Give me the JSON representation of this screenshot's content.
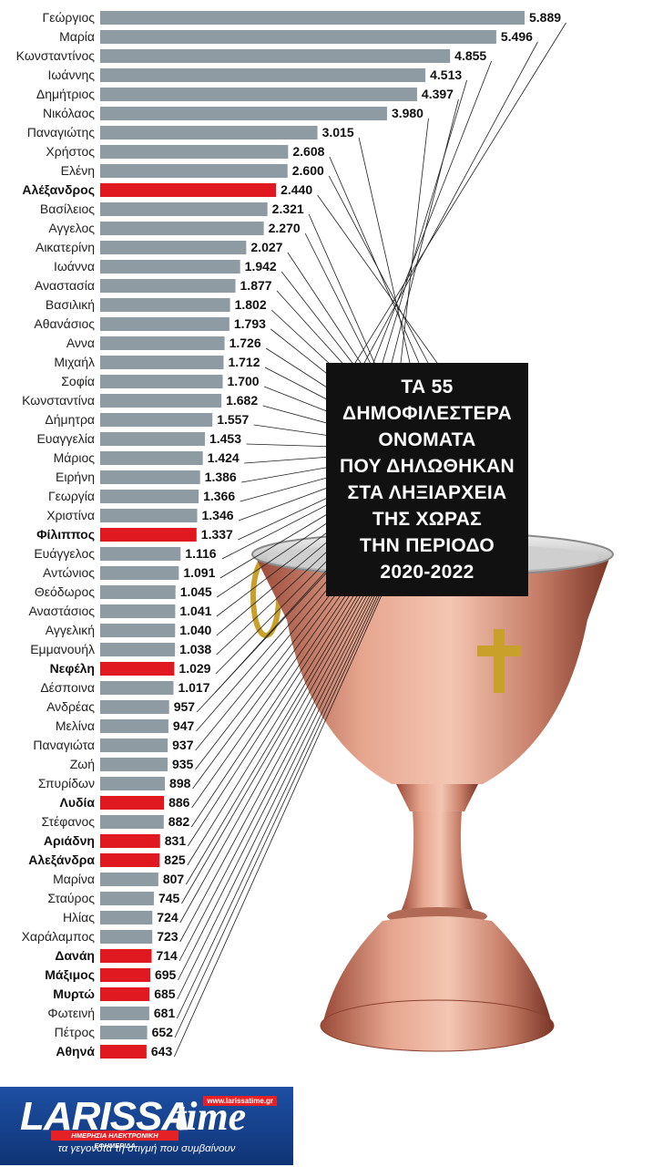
{
  "title_lines": [
    "ΤΑ 55",
    "ΔΗΜΟΦΙΛΕΣΤΕΡΑ",
    "ΟΝΟΜΑΤΑ",
    "ΠΟΥ ΔΗΛΩΘΗΚΑΝ",
    "ΣΤΑ ΛΗΞΙΑΡΧΕΙΑ",
    "ΤΗΣ ΧΩΡΑΣ",
    "ΤΗΝ ΠΕΡΙΟΔΟ",
    "2020-2022"
  ],
  "colors": {
    "bar": "#8f9ba2",
    "highlight": "#e0181f",
    "title_bg": "#111111",
    "logo_blue": "#1d4fa3"
  },
  "chart_data": {
    "type": "bar",
    "orientation": "horizontal",
    "title": "ΤΑ 55 ΔΗΜΟΦΙΛΕΣΤΕΡΑ ΟΝΟΜΑΤΑ ΠΟΥ ΔΗΛΩΘΗΚΑΝ ΣΤΑ ΛΗΞΙΑΡΧΕΙΑ ΤΗΣ ΧΩΡΑΣ ΤΗΝ ΠΕΡΙΟΔΟ 2020-2022",
    "categories": [
      "Γεώργιος",
      "Μαρία",
      "Κωνσταντίνος",
      "Ιωάννης",
      "Δημήτριος",
      "Νικόλαος",
      "Παναγιώτης",
      "Χρήστος",
      "Ελένη",
      "Αλέξανδρος",
      "Βασίλειος",
      "Αγγελος",
      "Αικατερίνη",
      "Ιωάννα",
      "Αναστασία",
      "Βασιλική",
      "Αθανάσιος",
      "Αννα",
      "Μιχαήλ",
      "Σοφία",
      "Κωνσταντίνα",
      "Δήμητρα",
      "Ευαγγελία",
      "Μάριος",
      "Ειρήνη",
      "Γεωργία",
      "Χριστίνα",
      "Φίλιππος",
      "Ευάγγελος",
      "Αντώνιος",
      "Θεόδωρος",
      "Αναστάσιος",
      "Αγγελική",
      "Εμμανουήλ",
      "Νεφέλη",
      "Δέσποινα",
      "Ανδρέας",
      "Μελίνα",
      "Παναγιώτα",
      "Ζωή",
      "Σπυρίδων",
      "Λυδία",
      "Στέφανος",
      "Αριάδνη",
      "Αλεξάνδρα",
      "Μαρίνα",
      "Σταύρος",
      "Ηλίας",
      "Χαράλαμπος",
      "Δανάη",
      "Μάξιμος",
      "Μυρτώ",
      "Φωτεινή",
      "Πέτρος",
      "Αθηνά"
    ],
    "values": [
      5889,
      5496,
      4855,
      4513,
      4397,
      3980,
      3015,
      2608,
      2600,
      2440,
      2321,
      2270,
      2027,
      1942,
      1877,
      1802,
      1793,
      1726,
      1712,
      1700,
      1682,
      1557,
      1453,
      1424,
      1386,
      1366,
      1346,
      1337,
      1116,
      1091,
      1045,
      1041,
      1040,
      1038,
      1029,
      1017,
      957,
      947,
      937,
      935,
      898,
      886,
      882,
      831,
      825,
      807,
      745,
      724,
      723,
      714,
      695,
      685,
      681,
      652,
      643
    ],
    "value_labels": [
      "5.889",
      "5.496",
      "4.855",
      "4.513",
      "4.397",
      "3.980",
      "3.015",
      "2.608",
      "2.600",
      "2.440",
      "2.321",
      "2.270",
      "2.027",
      "1.942",
      "1.877",
      "1.802",
      "1.793",
      "1.726",
      "1.712",
      "1.700",
      "1.682",
      "1.557",
      "1.453",
      "1.424",
      "1.386",
      "1.366",
      "1.346",
      "1.337",
      "1.116",
      "1.091",
      "1.045",
      "1.041",
      "1.040",
      "1.038",
      "1.029",
      "1.017",
      "957",
      "947",
      "937",
      "935",
      "898",
      "886",
      "882",
      "831",
      "825",
      "807",
      "745",
      "724",
      "723",
      "714",
      "695",
      "685",
      "681",
      "652",
      "643"
    ],
    "highlighted": [
      "Αλέξανδρος",
      "Φίλιππος",
      "Νεφέλη",
      "Λυδία",
      "Αριάδνη",
      "Αλεξάνδρα",
      "Δανάη",
      "Μάξιμος",
      "Μυρτώ",
      "Αθηνά"
    ],
    "grid": false,
    "legend": "none"
  },
  "logo": {
    "name_part1": "LARISSA",
    "name_part2": "time",
    "url": "www.larissatime.gr",
    "strip": "ΗΜΕΡΗΣΙΑ ΗΛΕΚΤΡΟΝΙΚΗ ΕΦΗΜΕΡΙΔΑ",
    "tagline": "τα γεγονότα τη στιγμή που συμβαίνουν"
  }
}
